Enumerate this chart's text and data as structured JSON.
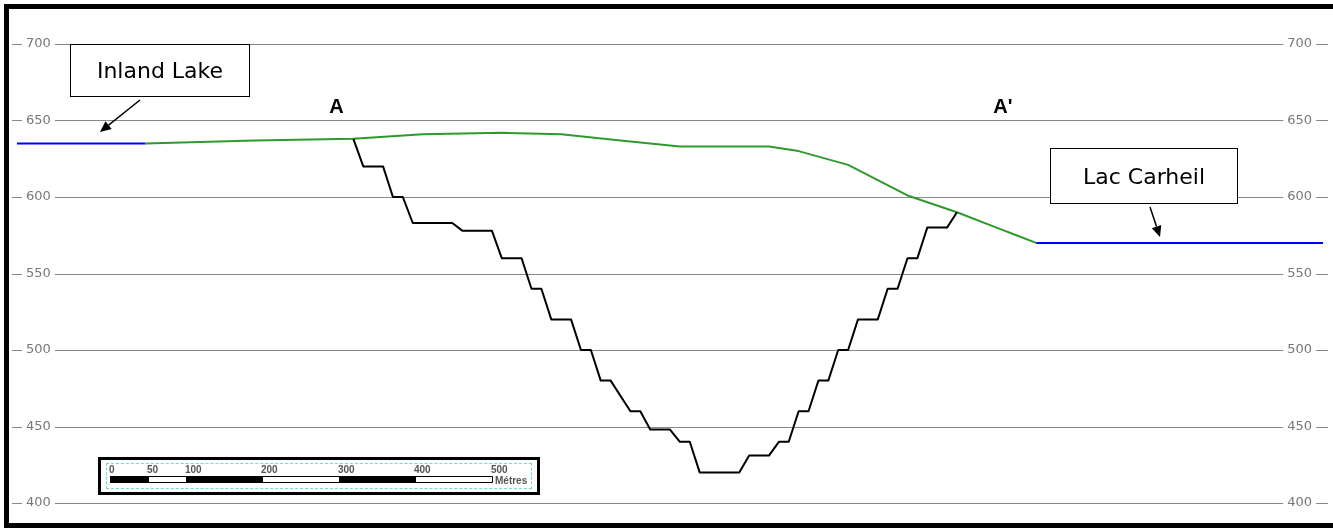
{
  "chart_data": {
    "type": "line",
    "categories": [
      null,
      null,
      null,
      null,
      null,
      null,
      null,
      null,
      null,
      null,
      null,
      null,
      null,
      null,
      null,
      null,
      null,
      null,
      null,
      null,
      null,
      null,
      null,
      null,
      null,
      null,
      null,
      null,
      null,
      null,
      null,
      null,
      null,
      null,
      null,
      null,
      null,
      null,
      null,
      null,
      null,
      null,
      null,
      null,
      null,
      null,
      null,
      null,
      null,
      null,
      null,
      null,
      null,
      null,
      null,
      null,
      null,
      null,
      null,
      null,
      null,
      null,
      null,
      null,
      null,
      null,
      null,
      null,
      null,
      null,
      null,
      null,
      null,
      null,
      null,
      null,
      null,
      null,
      null,
      null,
      null,
      null,
      null,
      null,
      null,
      null,
      null,
      null,
      null,
      null,
      null,
      null,
      null,
      null,
      null,
      null,
      null,
      null,
      null,
      null,
      null,
      null,
      null,
      null,
      null,
      null,
      null,
      null,
      null,
      null,
      null,
      null,
      null,
      null,
      null,
      null,
      null,
      null,
      null,
      null,
      null,
      null,
      null,
      null,
      null,
      null,
      null,
      null,
      null,
      null,
      null,
      null,
      null
    ],
    "series": [
      {
        "color": "#000000",
        "values": [
          null,
          null,
          null,
          null,
          null,
          null,
          null,
          null,
          null,
          null,
          null,
          null,
          null,
          null,
          null,
          null,
          null,
          null,
          null,
          null,
          null,
          null,
          null,
          null,
          null,
          null,
          null,
          null,
          null,
          null,
          null,
          null,
          null,
          null,
          638,
          620,
          null,
          620,
          600,
          600,
          583,
          null,
          null,
          null,
          583,
          578,
          null,
          null,
          578,
          560,
          null,
          560,
          540,
          540,
          520,
          null,
          520,
          500,
          500,
          480,
          480,
          null,
          460,
          460,
          448,
          null,
          448,
          440,
          440,
          420,
          null,
          null,
          null,
          420,
          431,
          null,
          431,
          440,
          440,
          460,
          460,
          480,
          480,
          500,
          500,
          520,
          null,
          520,
          540,
          540,
          560,
          560,
          580,
          null,
          580,
          590,
          null,
          null,
          null,
          null,
          null,
          null,
          null,
          null,
          null,
          null,
          null,
          null,
          null,
          null,
          null,
          null,
          null,
          null,
          null,
          null,
          null,
          null,
          null,
          null,
          null,
          null,
          null,
          null,
          null,
          null,
          null,
          null,
          null,
          null,
          null,
          null,
          null
        ]
      },
      {
        "color": "#2e9a2e",
        "values": [
          null,
          null,
          null,
          null,
          null,
          null,
          null,
          null,
          null,
          null,
          null,
          null,
          null,
          635,
          null,
          null,
          null,
          null,
          null,
          null,
          null,
          null,
          null,
          null,
          637,
          null,
          null,
          null,
          null,
          null,
          null,
          null,
          null,
          null,
          638,
          null,
          null,
          null,
          null,
          null,
          null,
          641,
          null,
          null,
          null,
          null,
          null,
          null,
          null,
          642,
          null,
          null,
          null,
          null,
          null,
          641,
          null,
          null,
          null,
          null,
          null,
          637,
          null,
          null,
          null,
          null,
          null,
          633,
          null,
          null,
          null,
          633,
          null,
          null,
          null,
          null,
          633,
          null,
          null,
          630,
          null,
          null,
          null,
          null,
          621,
          null,
          null,
          null,
          null,
          null,
          601,
          null,
          null,
          null,
          null,
          590,
          null,
          null,
          null,
          580,
          null,
          575,
          null,
          570,
          null,
          null,
          null,
          null,
          null,
          null,
          null,
          null,
          null,
          null,
          null,
          null,
          null,
          null,
          null,
          null,
          null,
          null,
          null,
          null,
          null,
          null,
          null,
          null,
          null,
          null,
          null,
          null,
          null
        ]
      },
      {
        "name": "Inland Lake",
        "color": "#0000ff",
        "values": [
          635,
          null,
          null,
          null,
          null,
          null,
          null,
          null,
          null,
          null,
          null,
          null,
          null,
          635,
          null,
          null,
          null,
          null,
          null,
          null,
          null,
          null,
          null,
          null,
          null,
          null,
          null,
          null,
          null,
          null,
          null,
          null,
          null,
          null,
          null,
          null,
          null,
          null,
          null,
          null,
          null,
          null,
          null,
          null,
          null,
          null,
          null,
          null,
          null,
          null,
          null,
          null,
          null,
          null,
          null,
          null,
          null,
          null,
          null,
          null,
          null,
          null,
          null,
          null,
          null,
          null,
          null,
          null,
          null,
          null,
          null,
          null,
          null,
          null,
          null,
          null,
          null,
          null,
          null,
          null,
          null,
          null,
          null,
          null,
          null,
          null,
          null,
          null,
          null,
          null,
          null,
          null,
          null,
          null,
          null,
          null,
          null,
          null,
          null,
          null,
          null,
          null,
          null,
          null,
          null,
          null,
          null,
          null,
          null,
          null,
          null,
          null,
          null,
          null,
          null,
          null,
          null,
          null,
          null,
          null,
          null,
          null,
          null,
          null,
          null,
          null,
          null,
          null,
          null,
          null,
          null,
          null,
          null
        ]
      },
      {
        "name": "Lac Carheil",
        "color": "#0000ff",
        "values": [
          null,
          null,
          null,
          null,
          null,
          null,
          null,
          null,
          null,
          null,
          null,
          null,
          null,
          null,
          null,
          null,
          null,
          null,
          null,
          null,
          null,
          null,
          null,
          null,
          null,
          null,
          null,
          null,
          null,
          null,
          null,
          null,
          null,
          null,
          null,
          null,
          null,
          null,
          null,
          null,
          null,
          null,
          null,
          null,
          null,
          null,
          null,
          null,
          null,
          null,
          null,
          null,
          null,
          null,
          null,
          null,
          null,
          null,
          null,
          null,
          null,
          null,
          null,
          null,
          null,
          null,
          null,
          null,
          null,
          null,
          null,
          null,
          null,
          null,
          null,
          null,
          null,
          null,
          null,
          null,
          null,
          null,
          null,
          null,
          null,
          null,
          null,
          null,
          null,
          null,
          null,
          null,
          null,
          null,
          null,
          null,
          null,
          null,
          null,
          null,
          null,
          null,
          null,
          570,
          null,
          null,
          null,
          null,
          null,
          null,
          null,
          null,
          null,
          null,
          null,
          null,
          null,
          null,
          null,
          null,
          null,
          null,
          null,
          null,
          null,
          null,
          null,
          null,
          null,
          null,
          null,
          null,
          570
        ]
      }
    ],
    "ylim": [
      400,
      700
    ],
    "yticks": [
      400,
      450,
      500,
      550,
      600,
      650,
      700
    ],
    "y2lim": [
      400,
      700
    ],
    "y2ticks": [
      400,
      450,
      500,
      550,
      600,
      650,
      700
    ],
    "tick_labels": "y",
    "grid": "y",
    "legend": false,
    "marker": "none",
    "line_style": "solid",
    "annotations": [
      "A",
      "A'",
      "0",
      "50",
      "100",
      "200",
      "300",
      "400",
      "500",
      "Métres"
    ]
  }
}
